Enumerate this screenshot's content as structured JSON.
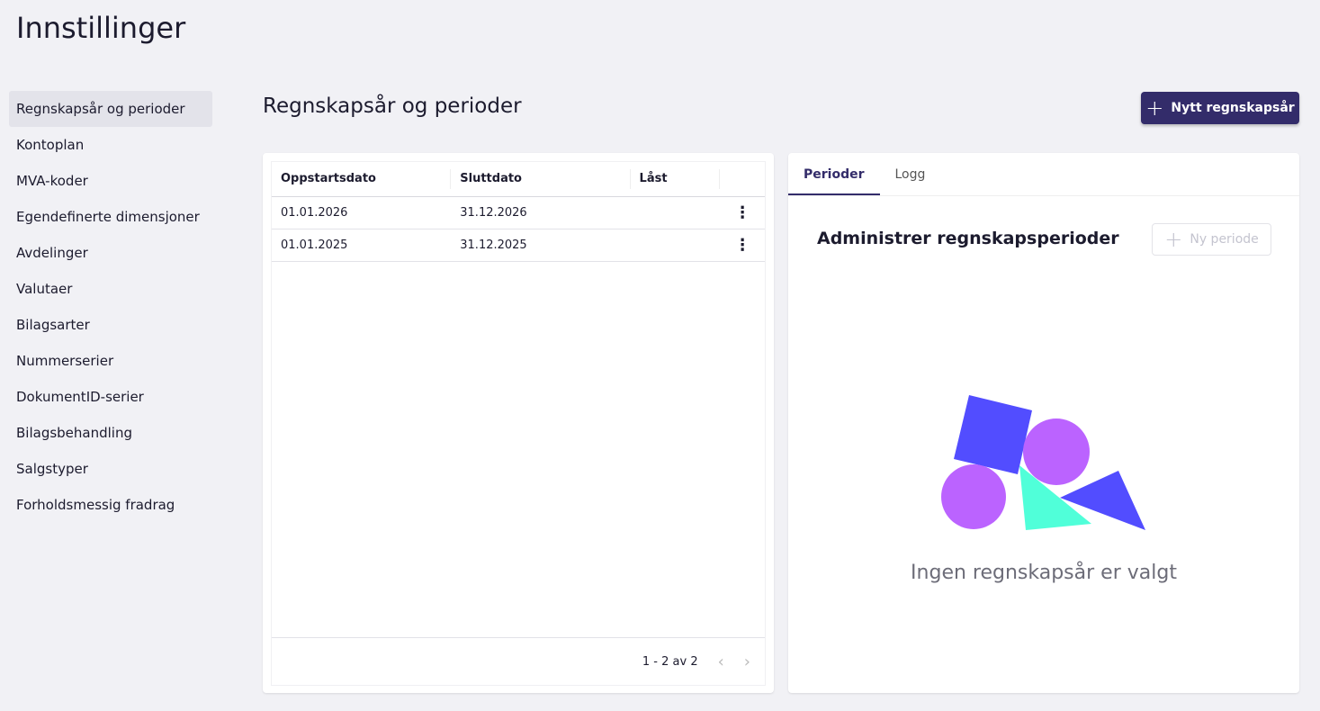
{
  "page_title": "Innstillinger",
  "sidebar": {
    "items": [
      {
        "label": "Regnskapsår og perioder",
        "active": true
      },
      {
        "label": "Kontoplan"
      },
      {
        "label": "MVA-koder"
      },
      {
        "label": "Egendefinerte dimensjoner"
      },
      {
        "label": "Avdelinger"
      },
      {
        "label": "Valutaer"
      },
      {
        "label": "Bilagsarter"
      },
      {
        "label": "Nummerserier"
      },
      {
        "label": "DokumentID-serier"
      },
      {
        "label": "Bilagsbehandling"
      },
      {
        "label": "Salgstyper"
      },
      {
        "label": "Forholdsmessig fradrag"
      }
    ]
  },
  "main": {
    "title": "Regnskapsår og perioder",
    "new_button": "Nytt regnskapsår",
    "new_icon": "plus-icon"
  },
  "table": {
    "columns": [
      "Oppstartsdato",
      "Sluttdato",
      "Låst"
    ],
    "rows": [
      {
        "start": "01.01.2026",
        "end": "31.12.2026",
        "locked": ""
      },
      {
        "start": "01.01.2025",
        "end": "31.12.2025",
        "locked": ""
      }
    ],
    "row_menu_icon": "more-vertical-icon",
    "pagination": "1 - 2 av 2"
  },
  "panel": {
    "tabs": [
      "Perioder",
      "Logg"
    ],
    "active_tab": "Perioder",
    "title": "Administrer regnskapsperioder",
    "new_period_button": "Ny periode",
    "empty_text": "Ingen regnskapsår er valgt"
  },
  "colors": {
    "primary": "#332c6a",
    "shape_blue": "#524dff",
    "shape_purple": "#bb63ff",
    "shape_cyan": "#50ffd9"
  }
}
